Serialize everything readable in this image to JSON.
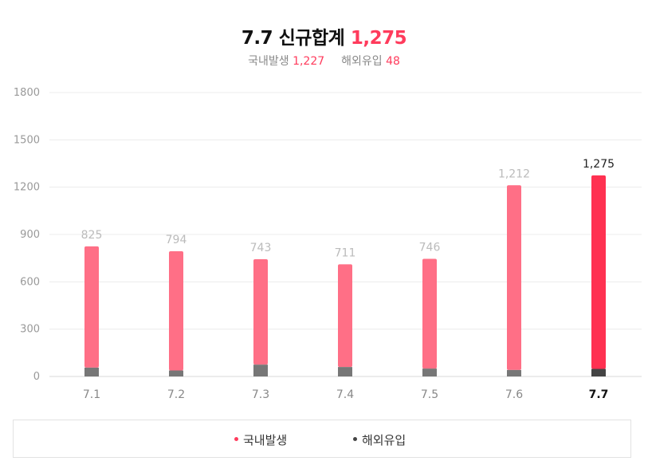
{
  "header": {
    "date": "7.7",
    "title_label": "신규합계",
    "total": "1,275",
    "domestic_label": "국내발생",
    "domestic_value": "1,227",
    "overseas_label": "해외유입",
    "overseas_value": "48"
  },
  "chart_data": {
    "type": "bar",
    "stacked": true,
    "categories": [
      "7.1",
      "7.2",
      "7.3",
      "7.4",
      "7.5",
      "7.6",
      "7.7"
    ],
    "totals": [
      825,
      794,
      743,
      711,
      746,
      1212,
      1275
    ],
    "total_labels": [
      "825",
      "794",
      "743",
      "711",
      "746",
      "1,212",
      "1,275"
    ],
    "series": [
      {
        "name": "해외유입",
        "values": [
          56,
          38,
          75,
          60,
          50,
          41,
          48
        ],
        "color": "#777777"
      },
      {
        "name": "국내발생",
        "values": [
          769,
          756,
          668,
          651,
          696,
          1171,
          1227
        ],
        "color": "#ff6f86"
      }
    ],
    "highlight_index": 6,
    "highlight_colors": {
      "domestic": "#ff3151",
      "overseas": "#444444"
    },
    "yticks": [
      0,
      300,
      600,
      900,
      1200,
      1500,
      1800
    ],
    "ylim": [
      0,
      1800
    ],
    "grid": true
  },
  "legend": {
    "items": [
      {
        "label": "국내발생",
        "color": "#ff3b5c"
      },
      {
        "label": "해외유입",
        "color": "#444444"
      }
    ]
  }
}
